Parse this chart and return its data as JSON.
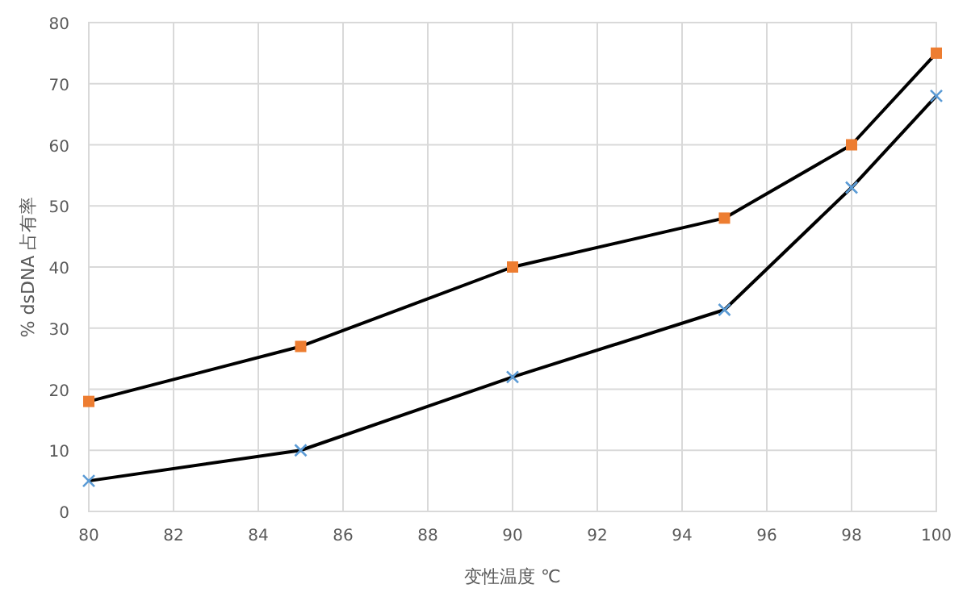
{
  "chart_data": {
    "type": "line",
    "xlabel": "变性温度 ℃",
    "ylabel": "% dsDNA 占有率",
    "x": [
      80,
      85,
      90,
      95,
      98,
      100
    ],
    "series": [
      {
        "color": "#ed7d31",
        "marker": "square",
        "values": [
          18,
          27,
          40,
          48,
          60,
          75
        ]
      },
      {
        "color": "#5b9bd5",
        "marker": "cross",
        "values": [
          5,
          10,
          22,
          33,
          53,
          68
        ]
      }
    ],
    "xlim": [
      80,
      100
    ],
    "xticks": [
      80,
      82,
      84,
      86,
      88,
      90,
      92,
      94,
      96,
      98,
      100
    ],
    "ylim": [
      0,
      80
    ],
    "yticks": [
      0,
      10,
      20,
      30,
      40,
      50,
      60,
      70,
      80
    ],
    "grid": true
  }
}
